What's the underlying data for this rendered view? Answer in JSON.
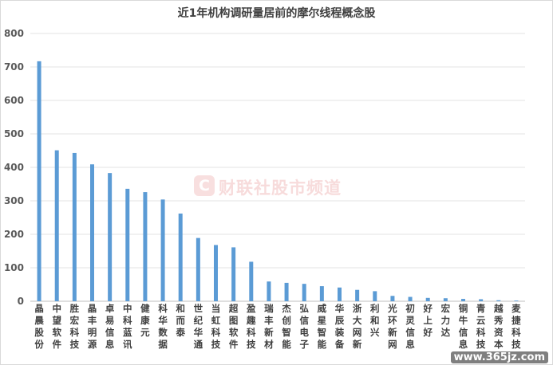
{
  "chart_data": {
    "type": "bar",
    "title": "近1年机构调研量居前的摩尔线程概念股",
    "xlabel": "",
    "ylabel": "",
    "ylim": [
      0,
      800
    ],
    "yticks": [
      0,
      100,
      200,
      300,
      400,
      500,
      600,
      700,
      800
    ],
    "grid": true,
    "legend": "none",
    "bar_color": "#5b9bd5",
    "categories": [
      "晶晨股份",
      "中望软件",
      "胜宏科技",
      "晶丰明源",
      "卓易信息",
      "中科蓝讯",
      "健康元",
      "科华数据",
      "和而泰",
      "世纪华通",
      "当虹科技",
      "超图软件",
      "盈趣科技",
      "瑞丰新材",
      "杰创智能",
      "弘信电子",
      "威星智能",
      "华辰装备",
      "浙大网新",
      "利和兴",
      "光环新网",
      "初灵信息",
      "好上好",
      "宏力达",
      "铜牛信息",
      "青云科技",
      "越秀资本",
      "麦捷科技"
    ],
    "values": [
      717,
      451,
      443,
      409,
      383,
      336,
      326,
      304,
      262,
      189,
      168,
      161,
      118,
      59,
      55,
      52,
      45,
      41,
      34,
      30,
      16,
      13,
      10,
      9,
      7,
      6,
      3,
      2
    ]
  },
  "watermark": {
    "logo_char": "C",
    "text": "财联社股市频道"
  },
  "site_badge": "www.365jz.com"
}
